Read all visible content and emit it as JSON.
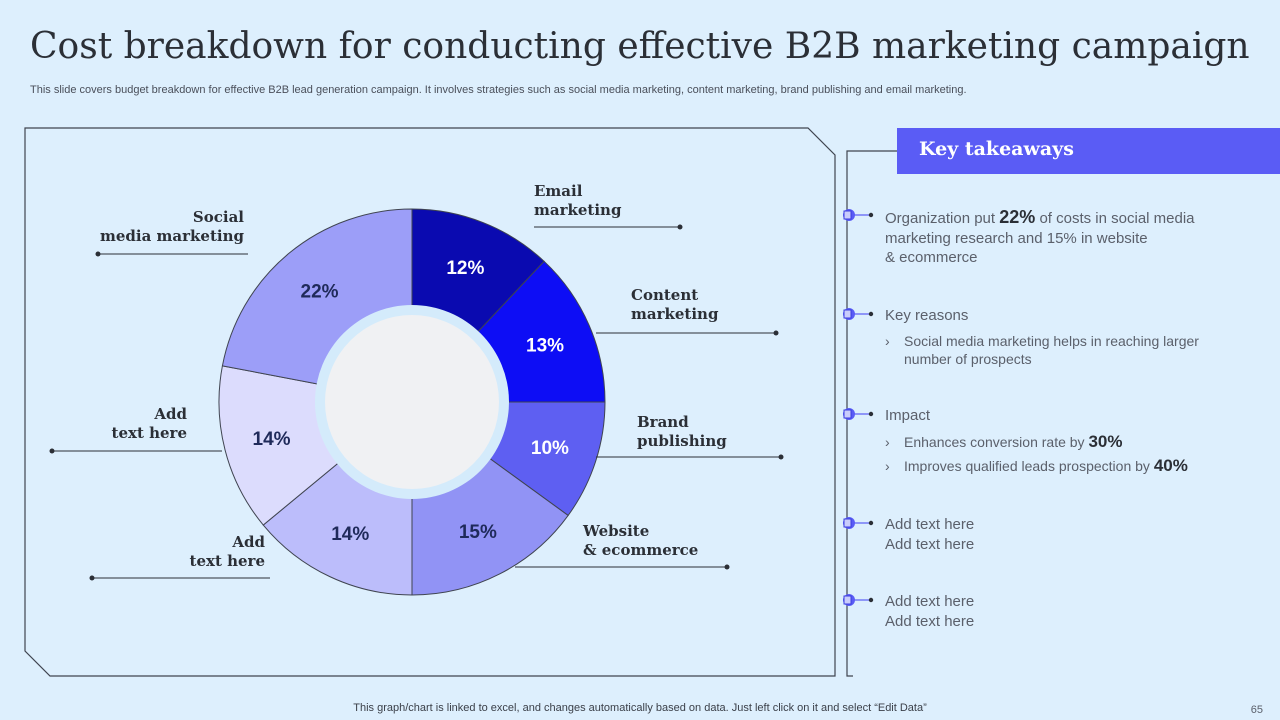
{
  "title": "Cost breakdown for conducting effective B2B marketing campaign",
  "subtitle": "This slide covers budget breakdown for effective B2B lead generation campaign. It involves strategies such as social media marketing, content marketing, brand publishing and email marketing.",
  "chart_data": {
    "type": "pie",
    "variant": "donut",
    "start": "top",
    "direction": "clockwise",
    "slices": [
      {
        "label": "Email marketing",
        "label_lines": [
          "Email",
          "marketing"
        ],
        "value": 12,
        "value_label": "12%",
        "color": "#0a0ab0"
      },
      {
        "label": "Content marketing",
        "label_lines": [
          "Content",
          "marketing"
        ],
        "value": 13,
        "value_label": "13%",
        "color": "#0d0df5"
      },
      {
        "label": "Brand publishing",
        "label_lines": [
          "Brand",
          "publishing"
        ],
        "value": 10,
        "value_label": "10%",
        "color": "#5e5ff2"
      },
      {
        "label": "Website & ecommerce",
        "label_lines": [
          "Website",
          "& ecommerce"
        ],
        "value": 15,
        "value_label": "15%",
        "color": "#9193f5"
      },
      {
        "label": "Add text here",
        "label_lines": [
          "Add",
          "text here"
        ],
        "value": 14,
        "value_label": "14%",
        "color": "#bcbdfb"
      },
      {
        "label": "Add text here",
        "label_lines": [
          "Add",
          "text here"
        ],
        "value": 14,
        "value_label": "14%",
        "color": "#dcdcfd"
      },
      {
        "label": "Social media marketing",
        "label_lines": [
          "Social",
          "media marketing"
        ],
        "value": 22,
        "value_label": "22%",
        "color": "#9c9ef8"
      }
    ]
  },
  "key_takeaways": {
    "header": "Key takeaways",
    "t1": {
      "pre": "Organization put ",
      "bold": "22%",
      "post": " of costs in social media",
      "line2": "marketing research and 15% in website",
      "line3": "& ecommerce"
    },
    "t2": {
      "label": "Key reasons",
      "sub1_line1": "Social media marketing helps in reaching larger",
      "sub1_line2": "number of prospects"
    },
    "t3": {
      "label": "Impact",
      "sub1_pre": "Enhances conversion rate by ",
      "sub1_bold": "30%",
      "sub2_pre": "Improves qualified leads prospection by ",
      "sub2_bold": "40%"
    },
    "t4": {
      "line1": "Add text here",
      "line2": "Add text here"
    },
    "t5": {
      "line1": "Add text here",
      "line2": "Add text here"
    },
    "chevron": "›"
  },
  "footer": "This graph/chart is linked to excel,  and changes automatically based on data. Just left click on it and select “Edit Data”",
  "page_number": "65"
}
